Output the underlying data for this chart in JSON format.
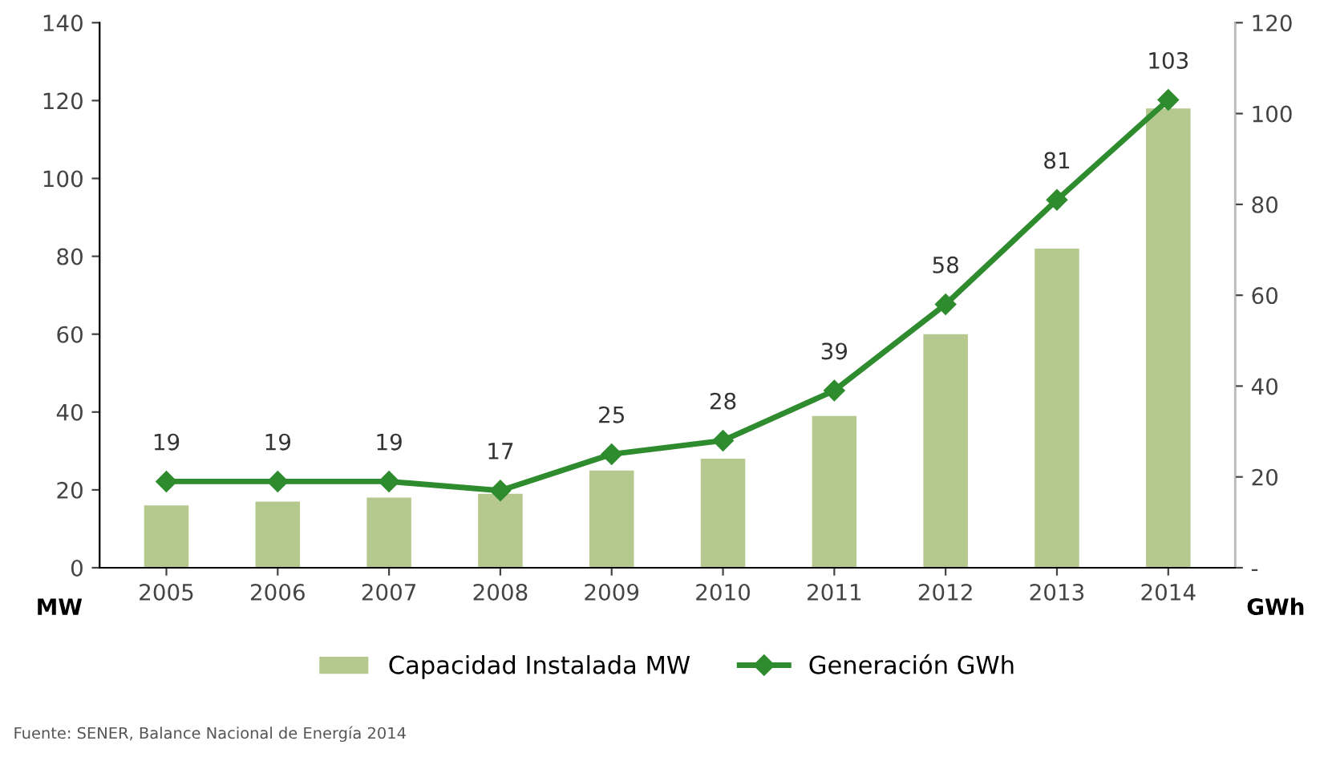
{
  "chart_data": {
    "type": "bar",
    "categories": [
      "2005",
      "2006",
      "2007",
      "2008",
      "2009",
      "2010",
      "2011",
      "2012",
      "2013",
      "2014"
    ],
    "series": [
      {
        "name": "Capacidad Instalada MW",
        "color": "#b5c98e",
        "values": [
          16,
          17,
          18,
          19,
          25,
          28,
          39,
          60,
          82,
          118
        ]
      },
      {
        "name": "Generación GWh",
        "type": "line",
        "axis": "y2",
        "color": "#2e8b2e",
        "marker": "diamond",
        "values": [
          19,
          19,
          19,
          17,
          25,
          28,
          39,
          58,
          81,
          103
        ],
        "value_labels": [
          "19",
          "19",
          "19",
          "17",
          "25",
          "28",
          "39",
          "58",
          "81",
          "103"
        ]
      }
    ],
    "ylabel": "MW",
    "y2label": "GWh",
    "ylim": [
      0,
      140
    ],
    "yticks": [
      0,
      20,
      40,
      60,
      80,
      100,
      120,
      140
    ],
    "y2lim": [
      0,
      120
    ],
    "y2ticks": [
      {
        "value": 0,
        "label": "-"
      },
      20,
      40,
      60,
      80,
      100,
      120
    ],
    "grid": false,
    "legend": "bottom",
    "annotations": [
      "Fuente: SENER, Balance Nacional de Energía 2014"
    ]
  }
}
